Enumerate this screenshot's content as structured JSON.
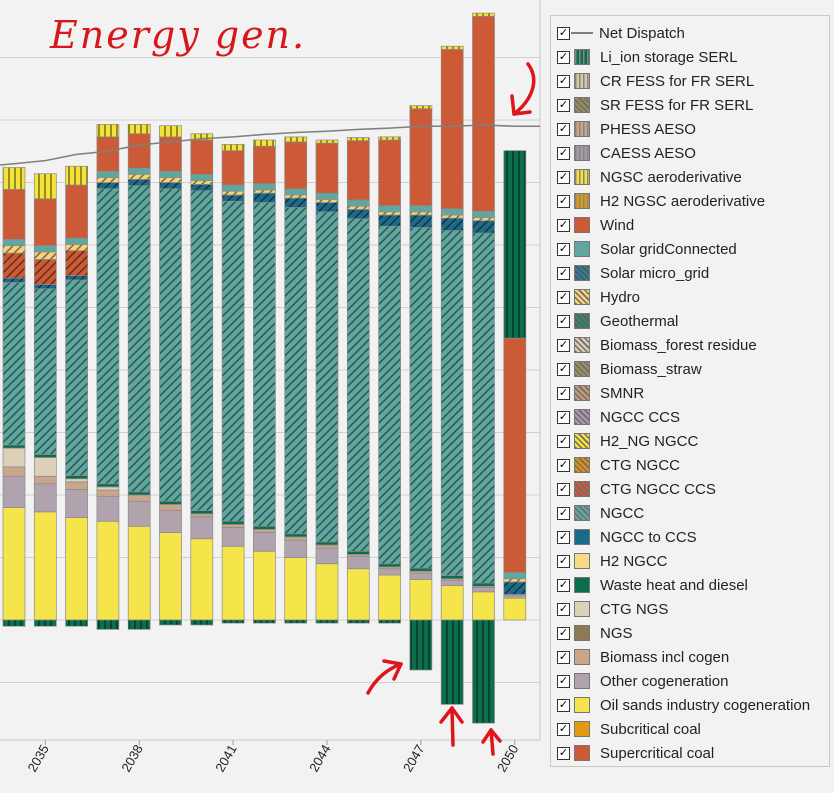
{
  "annotation": {
    "title": "Energy gen."
  },
  "legend": {
    "items": [
      {
        "label": "Net  Dispatch",
        "type": "line",
        "color": "#7f7f7f"
      },
      {
        "label": "Li_ion storage SERL",
        "color": "#0b6e4f",
        "pattern": "vlines"
      },
      {
        "label": "CR FESS for FR SERL",
        "color": "#d9c9a8",
        "pattern": "vlines"
      },
      {
        "label": "SR FESS for FR SERL",
        "color": "#9a8a5a",
        "pattern": "hatch"
      },
      {
        "label": "PHESS  AESO",
        "color": "#c9a58a",
        "pattern": "vlines"
      },
      {
        "label": "CAESS  AESO",
        "color": "#a99aa7",
        "pattern": "vlines"
      },
      {
        "label": "NGSC aeroderivative",
        "color": "#f5e33a",
        "pattern": "vlines"
      },
      {
        "label": "H2 NGSC aeroderivative",
        "color": "#e39a0f",
        "pattern": "vlines"
      },
      {
        "label": "Wind",
        "color": "#cc5a36",
        "pattern": "none"
      },
      {
        "label": "Solar gridConnected",
        "color": "#5fa8a0",
        "pattern": "none"
      },
      {
        "label": "Solar micro_grid",
        "color": "#1f6b8a",
        "pattern": "hatch"
      },
      {
        "label": "Hydro",
        "color": "#f7d27a",
        "pattern": "hatch"
      },
      {
        "label": "Geothermal",
        "color": "#2b7a63",
        "pattern": "hatch"
      },
      {
        "label": "Biomass_forest residue",
        "color": "#d9cbb3",
        "pattern": "hatch"
      },
      {
        "label": "Biomass_straw",
        "color": "#a08d5f",
        "pattern": "hatch"
      },
      {
        "label": "SMNR",
        "color": "#c39a7a",
        "pattern": "hatch"
      },
      {
        "label": "NGCC CCS",
        "color": "#a797b0",
        "pattern": "hatch"
      },
      {
        "label": "H2_NG NGCC",
        "color": "#f5e33a",
        "pattern": "hatch"
      },
      {
        "label": "CTG NGCC",
        "color": "#e08e12",
        "pattern": "hatch"
      },
      {
        "label": "CTG NGCC CCS",
        "color": "#cc5a36",
        "pattern": "hatch"
      },
      {
        "label": "NGCC",
        "color": "#5fa8a0",
        "pattern": "hatch"
      },
      {
        "label": "NGCC to CCS",
        "color": "#1a6a8c",
        "pattern": "none"
      },
      {
        "label": "H2 NGCC",
        "color": "#f8d985",
        "pattern": "none"
      },
      {
        "label": "Waste heat and diesel",
        "color": "#0b6e4f",
        "pattern": "none"
      },
      {
        "label": "CTG NGS",
        "color": "#ddd0b8",
        "pattern": "none"
      },
      {
        "label": "NGS",
        "color": "#8c7a52",
        "pattern": "none"
      },
      {
        "label": "Biomass incl cogen",
        "color": "#c9a58a",
        "pattern": "none"
      },
      {
        "label": "Other cogeneration",
        "color": "#b0a3ad",
        "pattern": "none"
      },
      {
        "label": "Oil sands industry cogeneration",
        "color": "#f5e54a",
        "pattern": "none"
      },
      {
        "label": "Subcritical coal",
        "color": "#e39a0f",
        "pattern": "none"
      },
      {
        "label": "Supercritical coal",
        "color": "#cc5a36",
        "pattern": "none"
      }
    ]
  },
  "chart_data": {
    "type": "bar",
    "stacked": true,
    "x_tick_labels": [
      "2035",
      "2038",
      "2041",
      "2044",
      "2047",
      "2050"
    ],
    "categories": [
      "2034",
      "2035",
      "2036",
      "2037",
      "2038",
      "2039",
      "2040",
      "2041",
      "2042",
      "2043",
      "2044",
      "2045",
      "2046",
      "2047",
      "2048",
      "2049",
      "2050"
    ],
    "y_units_note": "relative units (y-axis values not labeled)",
    "ylim": [
      -1.9,
      9.9
    ],
    "gridlines": [
      -1,
      0,
      1,
      2,
      3,
      4,
      5,
      6,
      7,
      8,
      9
    ],
    "series": [
      {
        "name": "Oil sands industry cogeneration",
        "values": [
          1.8,
          1.73,
          1.64,
          1.58,
          1.5,
          1.4,
          1.3,
          1.18,
          1.1,
          1.0,
          0.9,
          0.82,
          0.72,
          0.65,
          0.55,
          0.45,
          0.35
        ]
      },
      {
        "name": "Other cogeneration",
        "values": [
          0.5,
          0.45,
          0.45,
          0.4,
          0.4,
          0.35,
          0.35,
          0.3,
          0.3,
          0.28,
          0.25,
          0.2,
          0.1,
          0.1,
          0.08,
          0.07,
          0.05
        ]
      },
      {
        "name": "Biomass incl cogen",
        "values": [
          0.15,
          0.12,
          0.12,
          0.1,
          0.1,
          0.1,
          0.05,
          0.05,
          0.05,
          0.05,
          0.05,
          0.03,
          0.03,
          0.03,
          0.03,
          0.02,
          0.01
        ]
      },
      {
        "name": "CTG NGS",
        "values": [
          0.3,
          0.3,
          0.05,
          0.05,
          0,
          0,
          0,
          0,
          0,
          0,
          0,
          0,
          0,
          0,
          0,
          0,
          0
        ]
      },
      {
        "name": "Waste heat and diesel",
        "values": [
          0.05,
          0.05,
          0.05,
          0.05,
          0.05,
          0.05,
          0.05,
          0.05,
          0.05,
          0.05,
          0.05,
          0.05,
          0.05,
          0.05,
          0.05,
          0.05,
          0
        ]
      },
      {
        "name": "NGCC",
        "values": [
          2.6,
          2.65,
          3.13,
          4.72,
          4.9,
          5.0,
          5.12,
          5.12,
          5.18,
          5.22,
          5.28,
          5.32,
          5.4,
          5.45,
          5.52,
          5.6,
          0
        ]
      },
      {
        "name": "Solar micro_grid",
        "values": [
          0.07,
          0.07,
          0.07,
          0.1,
          0.1,
          0.1,
          0.1,
          0.1,
          0.15,
          0.15,
          0.15,
          0.15,
          0.18,
          0.2,
          0.2,
          0.2,
          0.2
        ]
      },
      {
        "name": "CTG NGCC CCS",
        "values": [
          0.4,
          0.4,
          0.4,
          0,
          0,
          0,
          0,
          0,
          0,
          0,
          0,
          0,
          0,
          0,
          0,
          0,
          0
        ]
      },
      {
        "name": "Hydro",
        "values": [
          0.12,
          0.12,
          0.1,
          0.08,
          0.08,
          0.08,
          0.06,
          0.06,
          0.05,
          0.05,
          0.05,
          0.05,
          0.05,
          0.05,
          0.05,
          0.05,
          0.05
        ]
      },
      {
        "name": "Solar gridConnected",
        "values": [
          0.1,
          0.1,
          0.1,
          0.1,
          0.1,
          0.1,
          0.1,
          0.1,
          0.1,
          0.1,
          0.1,
          0.1,
          0.1,
          0.1,
          0.1,
          0.1,
          0.1
        ]
      },
      {
        "name": "Wind",
        "values": [
          0.8,
          0.75,
          0.85,
          0.55,
          0.55,
          0.55,
          0.55,
          0.55,
          0.6,
          0.75,
          0.8,
          0.95,
          1.05,
          1.55,
          2.55,
          3.12,
          3.75
        ]
      },
      {
        "name": "NGSC aeroderivative",
        "values": [
          0.35,
          0.4,
          0.3,
          0.2,
          0.15,
          0.18,
          0.1,
          0.1,
          0.1,
          0.08,
          0.05,
          0.05,
          0.05,
          0.05,
          0.05,
          0.05,
          0
        ]
      },
      {
        "name": "Li_ion storage SERL",
        "values": [
          -0.1,
          -0.1,
          -0.1,
          -0.15,
          -0.15,
          -0.08,
          -0.08,
          -0.05,
          -0.05,
          -0.05,
          -0.05,
          -0.05,
          -0.05,
          -0.8,
          -1.35,
          -1.65,
          3.0
        ]
      }
    ],
    "net_dispatch": [
      7.3,
      7.35,
      7.45,
      7.5,
      7.6,
      7.65,
      7.7,
      7.73,
      7.77,
      7.8,
      7.82,
      7.85,
      7.87,
      7.9,
      7.9,
      7.92,
      7.9
    ]
  }
}
